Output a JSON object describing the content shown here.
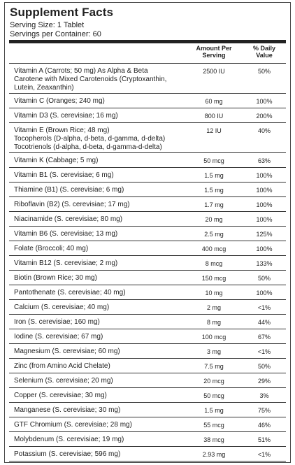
{
  "panel": {
    "title": "Supplement Facts",
    "serving_size": "Serving Size: 1 Tablet",
    "servings_per_container": "Servings per Container: 60",
    "header_amount": [
      "Amount Per",
      "Serving"
    ],
    "header_dv": [
      "% Daily",
      "Value"
    ]
  },
  "rows": [
    {
      "name": [
        "Vitamin A (Carrots; 50 mg) As Alpha & Beta",
        "Carotene with Mixed Carotenoids (Cryptoxanthin,",
        "Lutein, Zeaxanthin)"
      ],
      "amount": "2500 IU",
      "dv": "50%"
    },
    {
      "name": [
        "Vitamin C (Oranges; 240 mg)"
      ],
      "amount": "60 mg",
      "dv": "100%"
    },
    {
      "name": [
        "Vitamin D3 (S. cerevisiae; 16 mg)"
      ],
      "amount": "800 IU",
      "dv": "200%"
    },
    {
      "name": [
        "Vitamin E (Brown Rice; 48 mg)",
        "Tocopherols (D-alpha, d-beta, d-gamma, d-delta)",
        "Tocotrienols (d-alpha, d-beta, d-gamma-d-delta)"
      ],
      "amount": "12 IU",
      "dv": "40%"
    },
    {
      "name": [
        "Vitamin K (Cabbage; 5 mg)"
      ],
      "amount": "50 mcg",
      "dv": "63%"
    },
    {
      "name": [
        "Vitamin B1 (S. cerevisiae; 6 mg)"
      ],
      "amount": "1.5 mg",
      "dv": "100%"
    },
    {
      "name": [
        "Thiamine (B1) (S. cerevisiae; 6 mg)"
      ],
      "amount": "1.5 mg",
      "dv": "100%"
    },
    {
      "name": [
        "Riboflavin (B2) (S. cerevisiae; 17 mg)"
      ],
      "amount": "1.7 mg",
      "dv": "100%"
    },
    {
      "name": [
        "Niacinamide (S. cerevisiae; 80 mg)"
      ],
      "amount": "20 mg",
      "dv": "100%"
    },
    {
      "name": [
        "Vitamin B6 (S. cerevisiae; 13 mg)"
      ],
      "amount": "2.5 mg",
      "dv": "125%"
    },
    {
      "name": [
        "Folate (Broccoli; 40 mg)"
      ],
      "amount": "400 mcg",
      "dv": "100%"
    },
    {
      "name": [
        "Vitamin B12 (S. cerevisiae; 2 mg)"
      ],
      "amount": "8 mcg",
      "dv": "133%"
    },
    {
      "name": [
        "Biotin (Brown Rice; 30 mg)"
      ],
      "amount": "150 mcg",
      "dv": "50%"
    },
    {
      "name": [
        "Pantothenate (S. cerevisiae; 40 mg)"
      ],
      "amount": "10 mg",
      "dv": "100%"
    },
    {
      "name": [
        "Calcium (S. cerevisiae; 40 mg)"
      ],
      "amount": "2 mg",
      "dv": "<1%"
    },
    {
      "name": [
        "Iron (S. cerevisiae; 160 mg)"
      ],
      "amount": "8 mg",
      "dv": "44%"
    },
    {
      "name": [
        "Iodine (S. cerevisiae; 67 mg)"
      ],
      "amount": "100 mcg",
      "dv": "67%"
    },
    {
      "name": [
        "Magnesium (S. cerevisiae; 60 mg)"
      ],
      "amount": "3 mg",
      "dv": "<1%"
    },
    {
      "name": [
        "Zinc (from Amino Acid Chelate)"
      ],
      "amount": "7.5 mg",
      "dv": "50%"
    },
    {
      "name": [
        "Selenium (S. cerevisiae; 20 mg)"
      ],
      "amount": "20 mcg",
      "dv": "29%"
    },
    {
      "name": [
        "Copper (S. cerevisiae; 30 mg)"
      ],
      "amount": "50 mcg",
      "dv": "3%"
    },
    {
      "name": [
        "Manganese (S. cerevisiae; 30 mg)"
      ],
      "amount": "1.5 mg",
      "dv": "75%"
    },
    {
      "name": [
        "GTF Chromium (S. cerevisiae; 28 mg)"
      ],
      "amount": "55 mcg",
      "dv": "46%"
    },
    {
      "name": [
        "Molybdenum (S. cerevisiae; 19 mg)"
      ],
      "amount": "38 mcg",
      "dv": "51%"
    },
    {
      "name": [
        "Potassium (S. cerevisiae; 596 mg)"
      ],
      "amount": "2.93 mg",
      "dv": "<1%"
    }
  ]
}
